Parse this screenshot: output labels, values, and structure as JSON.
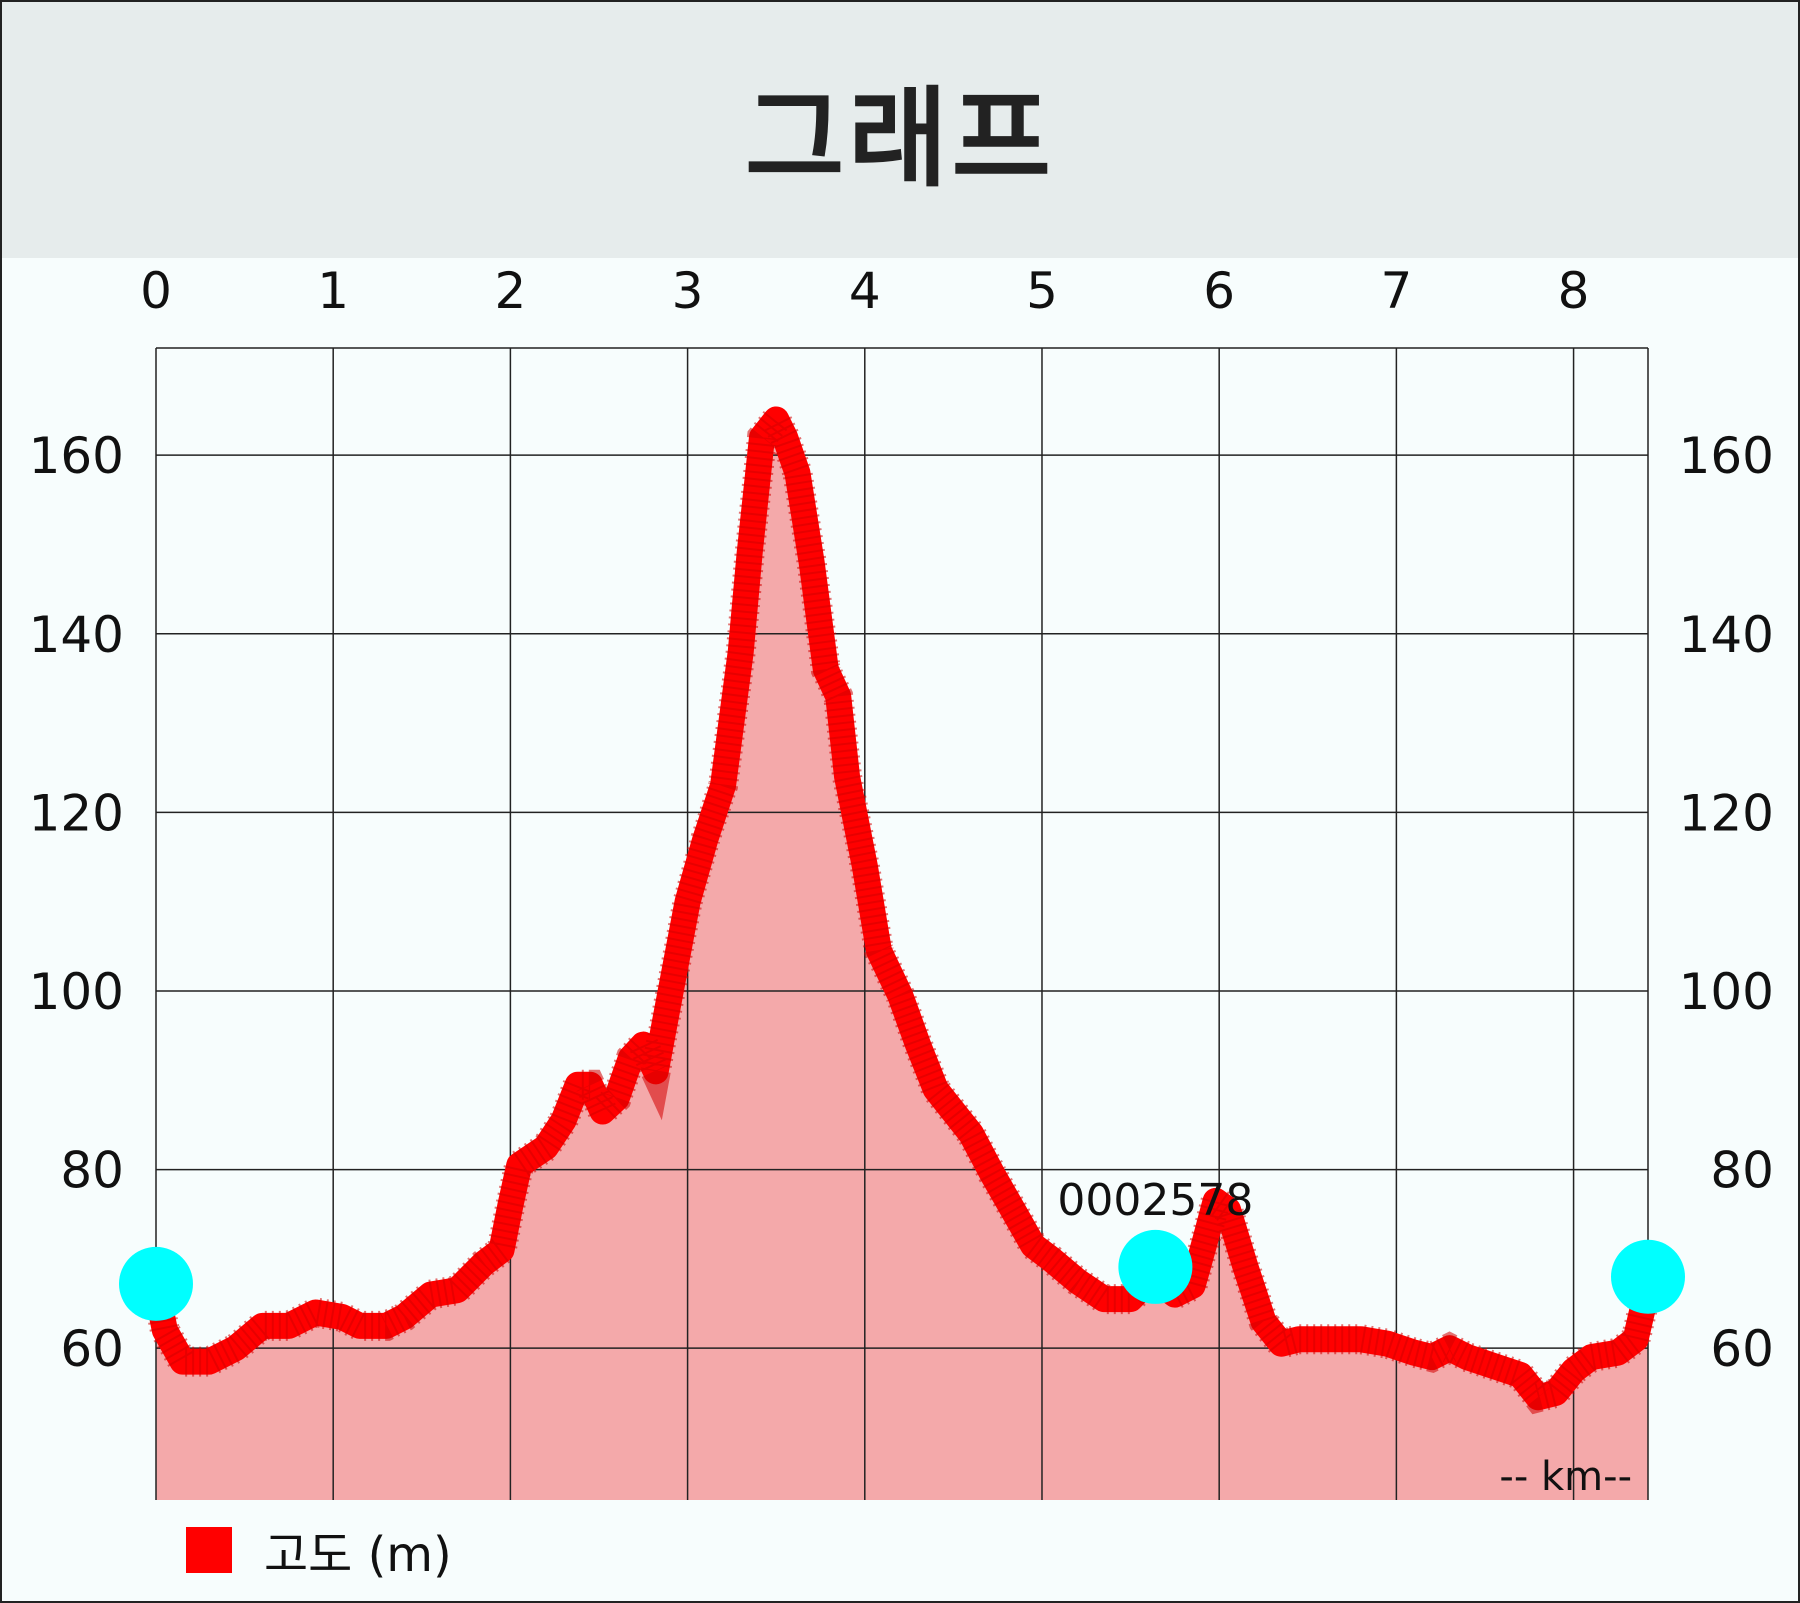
{
  "title": "그래프",
  "colors": {
    "line": "#ff0000",
    "area": "#f4a9aa",
    "marker": "#00ffff",
    "grid": "#222222",
    "header_bg": "#e6ecec"
  },
  "legend": {
    "label": "고도 (m)",
    "icon": "red-square"
  },
  "chart_data": {
    "type": "area",
    "xlabel": "-- km--",
    "ylabel": "",
    "xlim": [
      0,
      8.42
    ],
    "ylim": [
      43,
      172
    ],
    "x_ticks": [
      0,
      1,
      2,
      3,
      4,
      5,
      6,
      7,
      8
    ],
    "y_ticks": [
      60,
      80,
      100,
      120,
      140,
      160
    ],
    "axes_y_labels_both_sides": true,
    "x_axis_labels_position": "top",
    "grid": true,
    "series": [
      {
        "name": "고도 (m)",
        "points": [
          [
            0.0,
            67
          ],
          [
            0.05,
            62
          ],
          [
            0.15,
            58.5
          ],
          [
            0.3,
            58.5
          ],
          [
            0.45,
            60
          ],
          [
            0.6,
            62.5
          ],
          [
            0.75,
            62.5
          ],
          [
            0.9,
            64
          ],
          [
            1.05,
            63.5
          ],
          [
            1.15,
            62.5
          ],
          [
            1.3,
            62.5
          ],
          [
            1.4,
            63.5
          ],
          [
            1.55,
            66
          ],
          [
            1.7,
            66.5
          ],
          [
            1.85,
            69.5
          ],
          [
            1.95,
            71
          ],
          [
            2.0,
            76
          ],
          [
            2.05,
            80.5
          ],
          [
            2.2,
            82.5
          ],
          [
            2.3,
            85.5
          ],
          [
            2.38,
            89.5
          ],
          [
            2.45,
            89.5
          ],
          [
            2.52,
            86.5
          ],
          [
            2.6,
            88
          ],
          [
            2.68,
            92.5
          ],
          [
            2.75,
            94
          ],
          [
            2.82,
            91
          ],
          [
            2.9,
            99.5
          ],
          [
            3.0,
            110
          ],
          [
            3.1,
            117
          ],
          [
            3.2,
            123
          ],
          [
            3.3,
            138
          ],
          [
            3.35,
            149
          ],
          [
            3.42,
            162
          ],
          [
            3.5,
            164
          ],
          [
            3.55,
            162
          ],
          [
            3.62,
            158
          ],
          [
            3.7,
            148
          ],
          [
            3.78,
            136
          ],
          [
            3.85,
            133
          ],
          [
            3.9,
            124
          ],
          [
            4.0,
            114
          ],
          [
            4.08,
            104.5
          ],
          [
            4.2,
            99.5
          ],
          [
            4.3,
            94
          ],
          [
            4.4,
            89
          ],
          [
            4.5,
            86.5
          ],
          [
            4.6,
            84
          ],
          [
            4.72,
            79.5
          ],
          [
            4.85,
            75
          ],
          [
            4.95,
            71.5
          ],
          [
            5.05,
            70
          ],
          [
            5.2,
            67.5
          ],
          [
            5.35,
            65.5
          ],
          [
            5.5,
            65.5
          ],
          [
            5.62,
            68
          ],
          [
            5.75,
            66
          ],
          [
            5.85,
            67
          ],
          [
            5.92,
            72
          ],
          [
            5.98,
            76.5
          ],
          [
            6.05,
            75.5
          ],
          [
            6.15,
            69
          ],
          [
            6.25,
            63
          ],
          [
            6.35,
            60.5
          ],
          [
            6.45,
            61
          ],
          [
            6.6,
            61
          ],
          [
            6.8,
            61
          ],
          [
            6.95,
            60.5
          ],
          [
            7.1,
            59.5
          ],
          [
            7.2,
            59
          ],
          [
            7.3,
            60
          ],
          [
            7.4,
            59
          ],
          [
            7.55,
            58
          ],
          [
            7.7,
            57
          ],
          [
            7.8,
            54.5
          ],
          [
            7.9,
            55
          ],
          [
            8.0,
            57.5
          ],
          [
            8.1,
            59
          ],
          [
            8.25,
            59.5
          ],
          [
            8.35,
            61
          ],
          [
            8.42,
            67
          ]
        ]
      }
    ],
    "markers": [
      {
        "x": 0.0,
        "y": 67.2
      },
      {
        "x": 5.64,
        "y": 69.1,
        "label": "0002578"
      },
      {
        "x": 8.42,
        "y": 68.0
      }
    ]
  }
}
